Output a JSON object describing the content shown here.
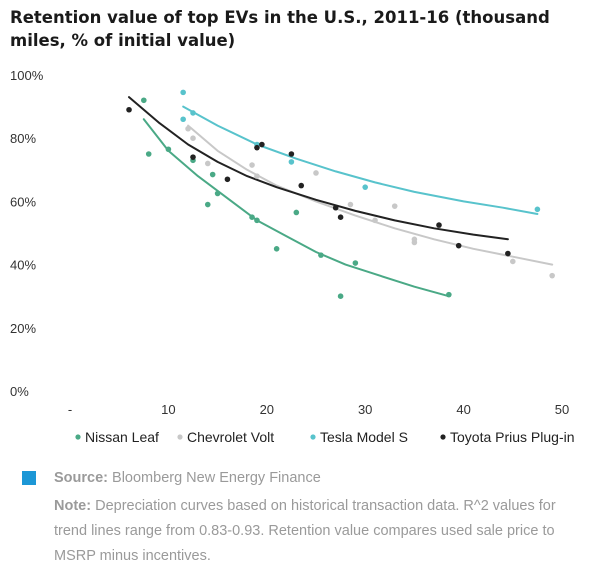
{
  "title": "Retention value of top EVs in the U.S., 2011-16 (thousand miles, % of initial value)",
  "chart_data": {
    "type": "scatter",
    "title": "Retention value of top EVs in the U.S., 2011-16 (thousand miles, % of initial value)",
    "xlabel": "",
    "ylabel": "",
    "xlim": [
      0,
      50
    ],
    "ylim": [
      0,
      100
    ],
    "x_ticks": [
      "-",
      "10",
      "20",
      "30",
      "40",
      "50"
    ],
    "y_ticks": [
      "0%",
      "20%",
      "40%",
      "60%",
      "80%",
      "100%"
    ],
    "grid": false,
    "legend_position": "bottom",
    "trend_lines": true,
    "series": [
      {
        "name": "Nissan Leaf",
        "color": "#4aa986",
        "points": [
          [
            7.5,
            92
          ],
          [
            8,
            75
          ],
          [
            10,
            76.5
          ],
          [
            12.5,
            73
          ],
          [
            14.5,
            68.5
          ],
          [
            15,
            62.5
          ],
          [
            14,
            59
          ],
          [
            18.5,
            55
          ],
          [
            19,
            54
          ],
          [
            21,
            45
          ],
          [
            23,
            56.5
          ],
          [
            25.5,
            43
          ],
          [
            27.5,
            30
          ],
          [
            29,
            40.5
          ],
          [
            38.5,
            30.5
          ]
        ],
        "trend": [
          [
            7.5,
            86
          ],
          [
            10,
            76
          ],
          [
            13,
            68
          ],
          [
            16,
            61
          ],
          [
            19,
            54
          ],
          [
            22,
            49
          ],
          [
            25,
            44
          ],
          [
            28,
            40
          ],
          [
            31,
            37
          ],
          [
            35,
            33
          ],
          [
            38.5,
            30
          ]
        ]
      },
      {
        "name": "Chevrolet Volt",
        "color": "#c8c8c8",
        "points": [
          [
            12,
            83
          ],
          [
            12.5,
            80
          ],
          [
            14,
            72
          ],
          [
            18.5,
            71.5
          ],
          [
            19,
            68
          ],
          [
            25,
            69
          ],
          [
            28.5,
            59
          ],
          [
            31,
            54
          ],
          [
            33,
            58.5
          ],
          [
            35,
            47
          ],
          [
            35,
            48
          ],
          [
            45,
            41
          ],
          [
            49,
            36.5
          ]
        ],
        "trend": [
          [
            12,
            84
          ],
          [
            15,
            76
          ],
          [
            18,
            70
          ],
          [
            21,
            65
          ],
          [
            25,
            60
          ],
          [
            29,
            55.5
          ],
          [
            33,
            51.5
          ],
          [
            37,
            48
          ],
          [
            41,
            45
          ],
          [
            45,
            42.5
          ],
          [
            49,
            40
          ]
        ]
      },
      {
        "name": "Tesla Model S",
        "color": "#58c3cc",
        "points": [
          [
            11.5,
            94.5
          ],
          [
            12.5,
            88
          ],
          [
            11.5,
            86
          ],
          [
            19,
            78
          ],
          [
            22.5,
            72.5
          ],
          [
            30,
            64.5
          ],
          [
            47.5,
            57.5
          ]
        ],
        "trend": [
          [
            11.5,
            90
          ],
          [
            15,
            84
          ],
          [
            19,
            78
          ],
          [
            23,
            73.5
          ],
          [
            27,
            69.5
          ],
          [
            31,
            66
          ],
          [
            35,
            63
          ],
          [
            40,
            60
          ],
          [
            44,
            58
          ],
          [
            47.5,
            56
          ]
        ]
      },
      {
        "name": "Toyota Prius Plug-in",
        "color": "#222222",
        "points": [
          [
            6,
            89
          ],
          [
            12.5,
            74
          ],
          [
            16,
            67
          ],
          [
            19,
            77
          ],
          [
            19.5,
            78
          ],
          [
            22.5,
            75
          ],
          [
            23.5,
            65
          ],
          [
            27,
            58
          ],
          [
            27.5,
            55
          ],
          [
            37.5,
            52.5
          ],
          [
            39.5,
            46
          ],
          [
            44.5,
            43.5
          ]
        ],
        "trend": [
          [
            6,
            93
          ],
          [
            9,
            85
          ],
          [
            12,
            78
          ],
          [
            15,
            72.5
          ],
          [
            18,
            68
          ],
          [
            21,
            64.5
          ],
          [
            25,
            60.5
          ],
          [
            29,
            57
          ],
          [
            33,
            54
          ],
          [
            37,
            51.5
          ],
          [
            41,
            49.5
          ],
          [
            44.5,
            48
          ]
        ]
      }
    ]
  },
  "footer": {
    "source_label": "Source:",
    "source_text": "Bloomberg New Energy Finance",
    "source_color": "#1c97d6",
    "note_label": "Note:",
    "note_text": "Depreciation curves based on historical transaction data. R^2 values for trend lines range from 0.83-0.93. Retention value compares used sale price to MSRP minus incentives."
  }
}
